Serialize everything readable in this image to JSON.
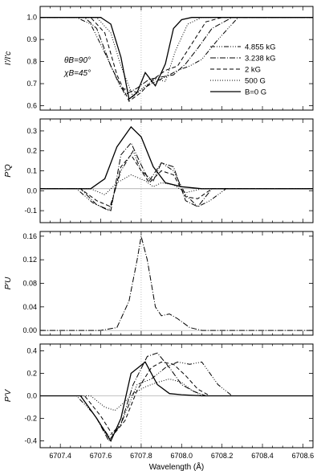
{
  "chart_data": {
    "type": "line",
    "xlabel": "Wavelength (Å)",
    "xlim": [
      6707.3,
      6708.65
    ],
    "x_ticks": [
      "6707.4",
      "6707.6",
      "6707.8",
      "6708.0",
      "6708.2",
      "6708.4",
      "6708.6"
    ],
    "reference_line_x": 6707.8,
    "legend": {
      "placement": "right side of top panel",
      "entries": [
        {
          "label": "4.855 kG",
          "style": "dash-dot-dot-dot"
        },
        {
          "label": "3.238 kG",
          "style": "dash-dot"
        },
        {
          "label": "2 kG",
          "style": "dashed"
        },
        {
          "label": "500 G",
          "style": "dotted"
        },
        {
          "label": "B=0 G",
          "style": "solid"
        }
      ]
    },
    "annotations": [
      "θB=90°",
      "χB=45°"
    ],
    "panels": [
      {
        "ylabel": "I'/I'c",
        "ylim": [
          0.58,
          1.05
        ],
        "y_ticks": [
          "0.6",
          "0.7",
          "0.8",
          "0.9",
          "1.0"
        ],
        "series": [
          {
            "name": "B=0 G",
            "x": [
              6707.3,
              6707.6,
              6707.65,
              6707.7,
              6707.74,
              6707.78,
              6707.82,
              6707.87,
              6707.92,
              6707.96,
              6708.0,
              6708.05,
              6708.1,
              6708.2,
              6708.65
            ],
            "values": [
              1.0,
              1.0,
              0.97,
              0.82,
              0.63,
              0.66,
              0.75,
              0.69,
              0.79,
              0.95,
              0.99,
              1.0,
              1.0,
              1.0,
              1.0
            ]
          },
          {
            "name": "500 G",
            "x": [
              6707.3,
              6707.58,
              6707.65,
              6707.7,
              6707.76,
              6707.82,
              6707.87,
              6707.92,
              6707.97,
              6708.03,
              6708.1,
              6708.2,
              6708.65
            ],
            "values": [
              1.0,
              1.0,
              0.93,
              0.78,
              0.64,
              0.69,
              0.72,
              0.71,
              0.85,
              0.97,
              1.0,
              1.0,
              1.0
            ]
          },
          {
            "name": "2 kG",
            "x": [
              6707.3,
              6707.55,
              6707.62,
              6707.68,
              6707.74,
              6707.8,
              6707.86,
              6707.92,
              6707.98,
              6708.05,
              6708.12,
              6708.2,
              6708.65
            ],
            "values": [
              1.0,
              1.0,
              0.93,
              0.74,
              0.62,
              0.66,
              0.72,
              0.76,
              0.78,
              0.88,
              0.98,
              1.0,
              1.0
            ]
          },
          {
            "name": "3.238 kG",
            "x": [
              6707.3,
              6707.52,
              6707.58,
              6707.65,
              6707.72,
              6707.78,
              6707.84,
              6707.9,
              6707.96,
              6708.02,
              6708.08,
              6708.15,
              6708.25,
              6708.65
            ],
            "values": [
              1.0,
              1.0,
              0.95,
              0.78,
              0.65,
              0.68,
              0.72,
              0.73,
              0.74,
              0.79,
              0.86,
              0.95,
              1.0,
              1.0
            ]
          },
          {
            "name": "4.855 kG",
            "x": [
              6707.3,
              6707.48,
              6707.55,
              6707.62,
              6707.7,
              6707.78,
              6707.85,
              6707.92,
              6707.98,
              6708.04,
              6708.1,
              6708.18,
              6708.28,
              6708.65
            ],
            "values": [
              1.0,
              1.0,
              0.97,
              0.84,
              0.68,
              0.66,
              0.7,
              0.73,
              0.76,
              0.78,
              0.81,
              0.9,
              1.0,
              1.0
            ]
          }
        ]
      },
      {
        "ylabel": "P'Q",
        "ylim": [
          -0.16,
          0.36
        ],
        "y_ticks": [
          "-0.1",
          "0.0",
          "0.1",
          "0.2",
          "0.3"
        ],
        "zero_line": 0.01,
        "series": [
          {
            "name": "B=0 G",
            "x": [
              6707.3,
              6707.55,
              6707.62,
              6707.68,
              6707.75,
              6707.8,
              6707.86,
              6707.92,
              6708.0,
              6708.1,
              6708.65
            ],
            "values": [
              0.01,
              0.01,
              0.06,
              0.22,
              0.32,
              0.27,
              0.12,
              0.04,
              0.02,
              0.01,
              0.01
            ]
          },
          {
            "name": "500 G",
            "x": [
              6707.3,
              6707.55,
              6707.62,
              6707.68,
              6707.75,
              6707.82,
              6707.86,
              6707.9,
              6707.96,
              6708.02,
              6708.1,
              6708.65
            ],
            "values": [
              0.01,
              0.01,
              -0.02,
              0.04,
              0.08,
              0.05,
              0.02,
              0.04,
              0.03,
              -0.01,
              0.01,
              0.01
            ]
          },
          {
            "name": "2 kG",
            "x": [
              6707.3,
              6707.5,
              6707.58,
              6707.65,
              6707.7,
              6707.75,
              6707.8,
              6707.84,
              6707.9,
              6707.96,
              6708.02,
              6708.08,
              6708.15,
              6708.65
            ],
            "values": [
              0.01,
              0.01,
              -0.05,
              -0.08,
              0.12,
              0.18,
              0.1,
              0.04,
              0.1,
              0.08,
              -0.03,
              -0.04,
              0.01,
              0.01
            ]
          },
          {
            "name": "3.238 kG",
            "x": [
              6707.3,
              6707.5,
              6707.58,
              6707.65,
              6707.7,
              6707.75,
              6707.8,
              6707.84,
              6707.9,
              6707.96,
              6708.02,
              6708.08,
              6708.15,
              6708.65
            ],
            "values": [
              0.01,
              0.01,
              -0.07,
              -0.1,
              0.18,
              0.24,
              0.13,
              0.05,
              0.14,
              0.12,
              -0.05,
              -0.08,
              0.01,
              0.01
            ]
          },
          {
            "name": "4.855 kG",
            "x": [
              6707.3,
              6707.48,
              6707.56,
              6707.64,
              6707.7,
              6707.76,
              6707.8,
              6707.86,
              6707.9,
              6707.96,
              6708.02,
              6708.08,
              6708.14,
              6708.22,
              6708.65
            ],
            "values": [
              0.01,
              0.01,
              -0.06,
              -0.1,
              0.1,
              0.2,
              0.1,
              0.05,
              0.14,
              0.1,
              -0.02,
              -0.08,
              -0.05,
              0.01,
              0.01
            ]
          }
        ]
      },
      {
        "ylabel": "P'U",
        "ylim": [
          -0.008,
          0.168
        ],
        "y_ticks": [
          "0.00",
          "0.04",
          "0.08",
          "0.12",
          "0.16"
        ],
        "zero_line": 0.0,
        "series": [
          {
            "name": "3.238 kG",
            "x": [
              6707.3,
              6707.6,
              6707.68,
              6707.74,
              6707.78,
              6707.8,
              6707.83,
              6707.87,
              6707.9,
              6707.94,
              6707.98,
              6708.04,
              6708.1,
              6708.65
            ],
            "values": [
              0.0,
              0.0,
              0.005,
              0.05,
              0.12,
              0.16,
              0.12,
              0.04,
              0.025,
              0.028,
              0.02,
              0.005,
              0.0,
              0.0
            ]
          }
        ]
      },
      {
        "ylabel": "P'V",
        "ylim": [
          -0.46,
          0.46
        ],
        "y_ticks": [
          "-0.4",
          "-0.2",
          "0.0",
          "0.2",
          "0.4"
        ],
        "zero_line": 0.0,
        "series": [
          {
            "name": "B=0 G",
            "x": [
              6707.3,
              6707.5,
              6707.58,
              6707.65,
              6707.7,
              6707.75,
              6707.82,
              6707.88,
              6707.94,
              6708.0,
              6708.1,
              6708.65
            ],
            "values": [
              0.0,
              0.0,
              -0.2,
              -0.4,
              -0.2,
              0.2,
              0.3,
              0.1,
              0.02,
              0.01,
              0.0,
              0.0
            ]
          },
          {
            "name": "500 G",
            "x": [
              6707.3,
              6707.55,
              6707.62,
              6707.67,
              6707.72,
              6707.76,
              6707.82,
              6707.88,
              6707.94,
              6708.0,
              6708.05,
              6708.1,
              6708.65
            ],
            "values": [
              0.0,
              0.0,
              -0.1,
              -0.13,
              -0.05,
              0.02,
              0.08,
              0.12,
              0.15,
              0.12,
              0.05,
              0.0,
              0.0
            ]
          },
          {
            "name": "2 kG",
            "x": [
              6707.3,
              6707.52,
              6707.6,
              6707.66,
              6707.72,
              6707.78,
              6707.85,
              6707.9,
              6707.96,
              6708.02,
              6708.08,
              6708.14,
              6708.65
            ],
            "values": [
              0.0,
              0.0,
              -0.18,
              -0.35,
              -0.22,
              0.05,
              0.25,
              0.3,
              0.28,
              0.18,
              0.06,
              0.0,
              0.0
            ]
          },
          {
            "name": "3.238 kG",
            "x": [
              6707.3,
              6707.5,
              6707.58,
              6707.64,
              6707.7,
              6707.76,
              6707.83,
              6707.88,
              6707.94,
              6708.0,
              6708.06,
              6708.12,
              6708.65
            ],
            "values": [
              0.0,
              0.0,
              -0.2,
              -0.4,
              -0.25,
              0.1,
              0.35,
              0.38,
              0.25,
              0.1,
              0.04,
              0.0,
              0.0
            ]
          },
          {
            "name": "4.855 kG",
            "x": [
              6707.3,
              6707.48,
              6707.56,
              6707.64,
              6707.7,
              6707.78,
              6707.85,
              6707.92,
              6707.98,
              6708.04,
              6708.1,
              6708.18,
              6708.25,
              6708.65
            ],
            "values": [
              0.0,
              0.0,
              -0.15,
              -0.36,
              -0.25,
              0.1,
              0.15,
              0.25,
              0.3,
              0.28,
              0.3,
              0.1,
              0.0,
              0.0
            ]
          }
        ]
      }
    ]
  }
}
